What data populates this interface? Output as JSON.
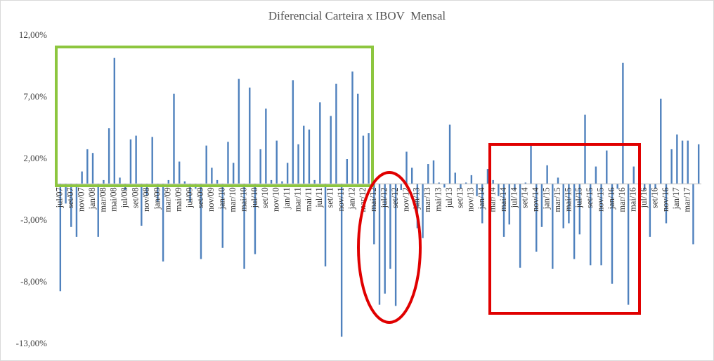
{
  "chart_data": {
    "type": "bar",
    "title": "Diferencial Carteira x IBOV  Mensal",
    "categories": [
      "jul/07",
      null,
      "set/07",
      null,
      "nov/07",
      null,
      "jan/08",
      null,
      "mar/08",
      null,
      "mai/08",
      null,
      "jul/08",
      null,
      "set/08",
      null,
      "nov/08",
      null,
      "jan/09",
      null,
      "mar/09",
      null,
      "mai/09",
      null,
      "jul/09",
      null,
      "set/09",
      null,
      "nov/09",
      null,
      "jan/10",
      null,
      "mar/10",
      null,
      "mai/10",
      null,
      "jul/10",
      null,
      "set/10",
      null,
      "nov/10",
      null,
      "jan/11",
      null,
      "mar/11",
      null,
      "mai/11",
      null,
      "jul/11",
      null,
      "set/11",
      null,
      "nov/11",
      null,
      "jan/12",
      null,
      "mar/12",
      null,
      "mai/12",
      null,
      "jul/12",
      null,
      "set/12",
      null,
      "nov/12",
      null,
      "jan/13",
      null,
      "mar/13",
      null,
      "mai/13",
      null,
      "jul/13",
      null,
      "set/13",
      null,
      "nov/13",
      null,
      "jan/14",
      null,
      "mar/14",
      null,
      "mai/14",
      null,
      "jul/14",
      null,
      "set/14",
      null,
      "nov/14",
      null,
      "jan/15",
      null,
      "mar/15",
      null,
      "mai/15",
      null,
      "jul/15",
      null,
      "set/15",
      null,
      "nov/15",
      null,
      "jan/16",
      null,
      "mar/16",
      null,
      "mai/16",
      null,
      "jul/16",
      null,
      "set/16",
      null,
      "nov/16",
      null,
      "jan/17",
      null,
      "mar/17",
      null,
      null
    ],
    "values": [
      -8.7,
      -1.6,
      -3.5,
      -4.3,
      1.0,
      2.8,
      2.5,
      -4.3,
      0.3,
      4.5,
      10.2,
      0.5,
      -0.5,
      3.6,
      3.9,
      -3.4,
      -1.0,
      3.8,
      -1.5,
      -6.3,
      0.3,
      7.3,
      1.8,
      0.2,
      -1.5,
      -0.4,
      -6.1,
      3.1,
      1.3,
      0.3,
      -5.2,
      3.4,
      1.7,
      8.5,
      -6.9,
      7.8,
      -5.7,
      2.8,
      6.1,
      0.3,
      3.5,
      0.2,
      1.7,
      8.4,
      3.2,
      4.7,
      4.4,
      0.3,
      6.6,
      -6.7,
      5.5,
      8.1,
      -12.4,
      2.0,
      9.1,
      7.3,
      3.9,
      4.1,
      -4.9,
      -9.8,
      -8.9,
      -6.9,
      -9.9,
      -0.5,
      2.6,
      1.3,
      -3.6,
      -4.4,
      1.6,
      1.9,
      0.1,
      -0.3,
      4.8,
      0.9,
      -0.4,
      0.1,
      0.7,
      -1.0,
      -3.2,
      1.2,
      0.3,
      -1.0,
      -4.3,
      -3.3,
      -0.5,
      -6.8,
      0.1,
      3.1,
      -5.5,
      -3.5,
      1.5,
      -6.9,
      0.5,
      -3.6,
      -3.2,
      -6.1,
      -4.1,
      5.6,
      -6.6,
      1.4,
      -6.6,
      2.7,
      -8.1,
      -0.4,
      9.8,
      -9.8,
      1.4,
      -0.3,
      -0.5,
      -4.3,
      -0.4,
      6.9,
      -3.2,
      2.8,
      4.0,
      3.5,
      3.5,
      -4.9,
      3.2
    ],
    "color": "#4f81bd",
    "ylim": [
      -13,
      12
    ],
    "yticks": [
      {
        "value": -13,
        "label": "-13,00%"
      },
      {
        "value": -8,
        "label": "-8,00%"
      },
      {
        "value": -3,
        "label": "-3,00%"
      },
      {
        "value": 2,
        "label": "2,00%"
      },
      {
        "value": 7,
        "label": "7,00%"
      },
      {
        "value": 12,
        "label": "12,00%"
      }
    ],
    "grid": false
  }
}
